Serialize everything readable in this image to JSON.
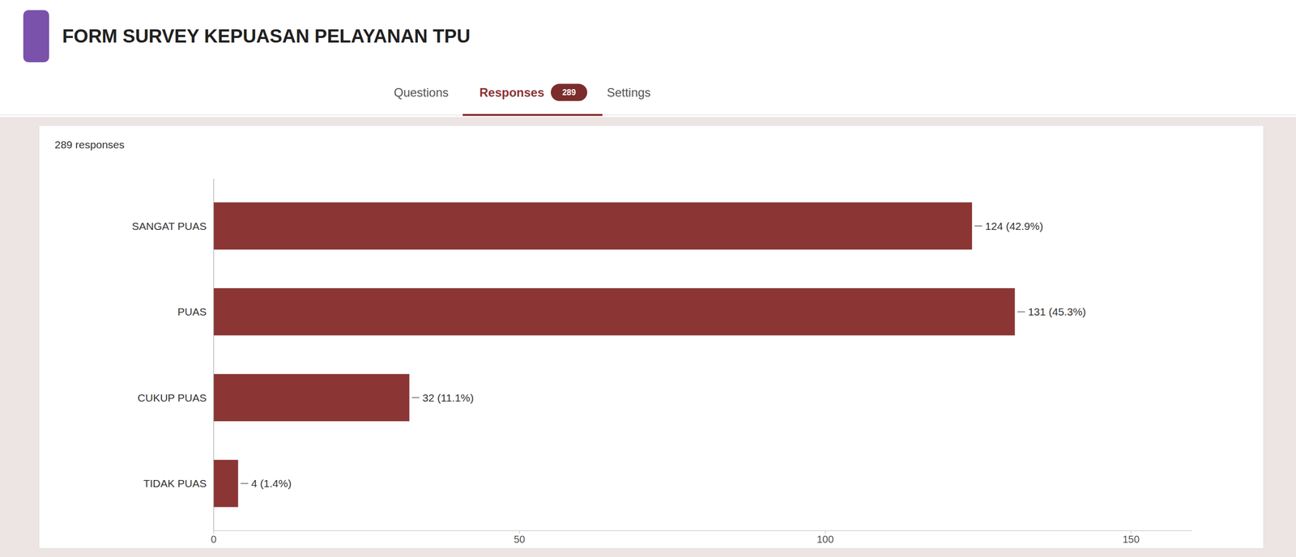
{
  "chart_data": {
    "type": "bar",
    "orientation": "horizontal",
    "title": "FORM SURVEY KEPUASAN PELAYANAN TPU",
    "subtitle": "289 responses",
    "annotations": [
      "Questions",
      "Responses",
      "289",
      "Settings"
    ],
    "categories": [
      "SANGAT PUAS",
      "PUAS",
      "CUKUP PUAS",
      "TIDAK PUAS"
    ],
    "values": [
      124,
      131,
      32,
      4
    ],
    "value_labels": [
      "124 (42.9%)",
      "131 (45.3%)",
      "32 (11.1%)",
      "4 (1.4%)"
    ],
    "data_labels": true,
    "color": "#8B3535",
    "xlim": [
      0,
      160
    ],
    "xticks": [
      0,
      50,
      100,
      150
    ],
    "grid": false
  }
}
